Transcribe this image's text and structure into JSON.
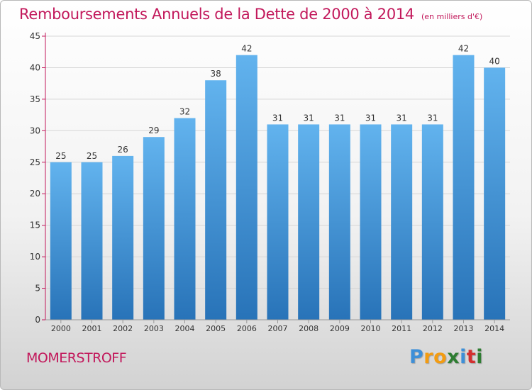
{
  "chart_data": {
    "type": "bar",
    "title": "Remboursements Annuels de la Dette de 2000 à 2014",
    "unit": "(en milliers d'€)",
    "categories": [
      "2000",
      "2001",
      "2002",
      "2003",
      "2004",
      "2005",
      "2006",
      "2007",
      "2008",
      "2009",
      "2010",
      "2011",
      "2012",
      "2013",
      "2014"
    ],
    "values": [
      25,
      25,
      26,
      29,
      32,
      38,
      42,
      31,
      31,
      31,
      31,
      31,
      31,
      42,
      40
    ],
    "ylim": [
      0,
      45
    ],
    "yticks": [
      0,
      5,
      10,
      15,
      20,
      25,
      30,
      35,
      40,
      45
    ],
    "grid": true,
    "bar_color": "#3d8fd8",
    "xlabel": "",
    "ylabel": ""
  },
  "footer": {
    "commune": "MOMERSTROFF",
    "logo_letters": [
      "P",
      "r",
      "o",
      "x",
      "i",
      "t",
      "i"
    ],
    "logo_colors": [
      "#3d8fd8",
      "#f39c12",
      "#f39c12",
      "#2e7d32",
      "#3d8fd8",
      "#d32f2f",
      "#2e7d32"
    ]
  },
  "colors": {
    "accent": "#c2185b",
    "axis": "#c2185b"
  }
}
